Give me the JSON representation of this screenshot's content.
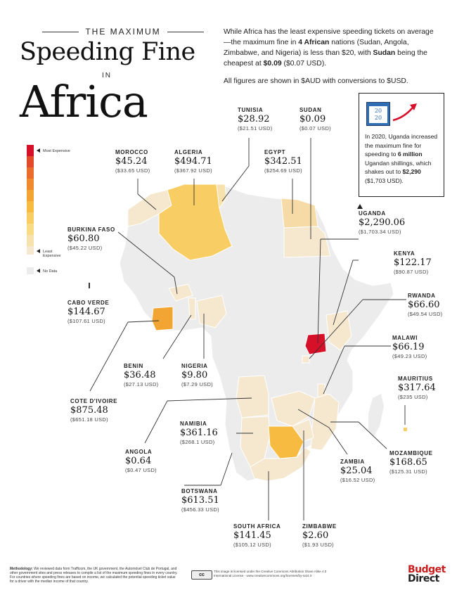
{
  "title": {
    "top": "THE MAXIMUM",
    "main": "Speeding Fine",
    "in": "IN",
    "region": "Africa"
  },
  "intro": {
    "p1_a": "While Africa has the least expensive speeding tickets on average —the maximum fine in ",
    "p1_b": "4 African",
    "p1_c": " nations (Sudan, Angola, Zimbabwe, and Nigeria) is less than $20, with ",
    "p1_d": "Sudan",
    "p1_e": " being the cheapest at ",
    "p1_f": "$0.09",
    "p1_g": " ($0.07 USD).",
    "p2": "All figures are shown in $AUD with conversions to $USD."
  },
  "legend": {
    "most": "Most Expensive",
    "least": "Least Expensive",
    "nodata": "No Data",
    "colors": [
      "#d7102a",
      "#e24a2b",
      "#ea6d2d",
      "#ef8a2f",
      "#f3a533",
      "#f6bb40",
      "#f8cd63",
      "#f9da85",
      "#f7e2ad",
      "#f5e8cf"
    ],
    "nodata_color": "#ececec"
  },
  "callout": {
    "year1": "20",
    "year2": "20",
    "a": "In 2020, Uganda increased the maximum fine for speeding to ",
    "b": "6 million",
    "c": " Ugandan shillings, which shakes out to ",
    "d": "$2,290",
    "e": " ($1,703 USD)."
  },
  "countries": {
    "tunisia": {
      "name": "TUNISIA",
      "aud": "$28.92",
      "usd": "($21.51 USD)"
    },
    "sudan": {
      "name": "SUDAN",
      "aud": "$0.09",
      "usd": "($0.07 USD)"
    },
    "morocco": {
      "name": "MOROCCO",
      "aud": "$45.24",
      "usd": "($33.65 USD)"
    },
    "algeria": {
      "name": "ALGERIA",
      "aud": "$494.71",
      "usd": "($367.92 USD)"
    },
    "egypt": {
      "name": "EGYPT",
      "aud": "$342.51",
      "usd": "($254.69 USD)"
    },
    "uganda": {
      "name": "UGANDA",
      "aud": "$2,290.06",
      "usd": "($1,703.34 USD)"
    },
    "burkina": {
      "name": "BURKINA FASO",
      "aud": "$60.80",
      "usd": "($45.22 USD)"
    },
    "kenya": {
      "name": "KENYA",
      "aud": "$122.17",
      "usd": "($90.87 USD)"
    },
    "caboverde": {
      "name": "CABO VERDE",
      "aud": "$144.67",
      "usd": "($107.61 USD)"
    },
    "rwanda": {
      "name": "RWANDA",
      "aud": "$66.60",
      "usd": "($49.54 USD)"
    },
    "malawi": {
      "name": "MALAWI",
      "aud": "$66.19",
      "usd": "($49.23 USD)"
    },
    "benin": {
      "name": "BENIN",
      "aud": "$36.48",
      "usd": "($27.13 USD)"
    },
    "nigeria": {
      "name": "NIGERIA",
      "aud": "$9.80",
      "usd": "($7.29 USD)"
    },
    "mauritius": {
      "name": "MAURITIUS",
      "aud": "$317.64",
      "usd": "($235 USD)"
    },
    "cotedivoire": {
      "name": "COTE D'IVOIRE",
      "aud": "$875.48",
      "usd": "($651.18 USD)"
    },
    "namibia": {
      "name": "NAMIBIA",
      "aud": "$361.16",
      "usd": "($268.1 USD)"
    },
    "angola": {
      "name": "ANGOLA",
      "aud": "$0.64",
      "usd": "($0.47 USD)"
    },
    "mozambique": {
      "name": "MOZAMBIQUE",
      "aud": "$168.65",
      "usd": "($125.31 USD)"
    },
    "zambia": {
      "name": "ZAMBIA",
      "aud": "$25.04",
      "usd": "($16.52 USD)"
    },
    "botswana": {
      "name": "BOTSWANA",
      "aud": "$613.51",
      "usd": "($456.33 USD)"
    },
    "southafrica": {
      "name": "SOUTH AFRICA",
      "aud": "$141.45",
      "usd": "($105.12 USD)"
    },
    "zimbabwe": {
      "name": "ZIMBABWE",
      "aud": "$2.60",
      "usd": "($1.93 USD)"
    }
  },
  "footer": {
    "method_label": "Methodology:",
    "method": " We reviewed data from Trafficom, the UK government, the Automóvel Club de Portugal, and other government sites and press releases to compile a list of the maximum speeding fines in every country. For countries where speeding fines are based on income, we calculated the potential speeding ticket value for a driver with the median income of that country.",
    "cc": "cc",
    "license": "This image is licensed under the Creative Commons Attribution Share Alike 4.0 International License - www.creativecommons.org/licenses/by-sa/4.0",
    "brand1": "Budget",
    "brand2": "Direct"
  }
}
